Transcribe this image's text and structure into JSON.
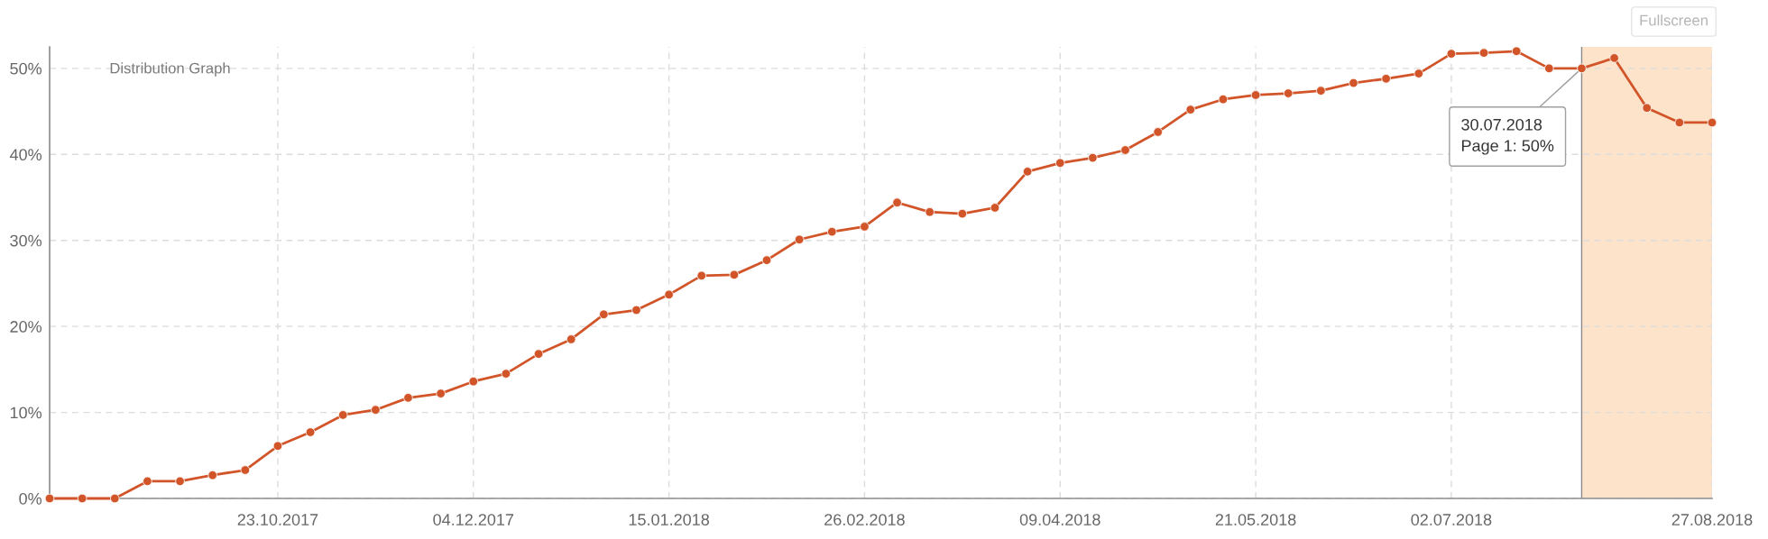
{
  "chart_data": {
    "type": "line",
    "title": "Distribution Graph",
    "x": [
      "2017-09-04",
      "2017-09-11",
      "2017-09-18",
      "2017-09-25",
      "2017-10-02",
      "2017-10-09",
      "2017-10-16",
      "2017-10-23",
      "2017-10-30",
      "2017-11-06",
      "2017-11-13",
      "2017-11-20",
      "2017-11-27",
      "2017-12-04",
      "2017-12-11",
      "2017-12-18",
      "2017-12-25",
      "2018-01-01",
      "2018-01-08",
      "2018-01-15",
      "2018-01-22",
      "2018-01-29",
      "2018-02-05",
      "2018-02-12",
      "2018-02-19",
      "2018-02-26",
      "2018-03-05",
      "2018-03-12",
      "2018-03-19",
      "2018-03-26",
      "2018-04-02",
      "2018-04-09",
      "2018-04-16",
      "2018-04-23",
      "2018-04-30",
      "2018-05-07",
      "2018-05-14",
      "2018-05-21",
      "2018-05-28",
      "2018-06-04",
      "2018-06-11",
      "2018-06-18",
      "2018-06-25",
      "2018-07-02",
      "2018-07-09",
      "2018-07-16",
      "2018-07-23",
      "2018-07-30",
      "2018-08-06",
      "2018-08-13",
      "2018-08-20",
      "2018-08-27"
    ],
    "series": [
      {
        "color": "#d2552a",
        "values": [
          0,
          0,
          0,
          2.0,
          2.0,
          2.7,
          3.3,
          6.1,
          7.7,
          9.7,
          10.3,
          11.7,
          12.2,
          13.6,
          14.5,
          16.8,
          18.5,
          21.4,
          21.9,
          23.7,
          25.9,
          26.0,
          27.7,
          30.1,
          31.0,
          31.6,
          34.4,
          33.3,
          33.1,
          33.8,
          38.0,
          39.0,
          39.6,
          40.5,
          42.6,
          45.2,
          46.4,
          46.9,
          47.1,
          47.4,
          48.3,
          48.8,
          49.4,
          51.7,
          51.8,
          52.0,
          50.0,
          50.0,
          51.2,
          45.4,
          43.7,
          43.7
        ]
      }
    ],
    "xlim": [
      "2017-09-04",
      "2018-08-27"
    ],
    "ylim": [
      0,
      52.5
    ],
    "xticks": [
      {
        "value": "2017-10-23",
        "label": "23.10.2017"
      },
      {
        "value": "2017-12-04",
        "label": "04.12.2017"
      },
      {
        "value": "2018-01-15",
        "label": "15.01.2018"
      },
      {
        "value": "2018-02-26",
        "label": "26.02.2018"
      },
      {
        "value": "2018-04-09",
        "label": "09.04.2018"
      },
      {
        "value": "2018-05-21",
        "label": "21.05.2018"
      },
      {
        "value": "2018-07-02",
        "label": "02.07.2018"
      },
      {
        "value": "2018-08-27",
        "label": "27.08.2018"
      }
    ],
    "yticks": [
      {
        "value": 0,
        "label": "0%"
      },
      {
        "value": 10,
        "label": "10%"
      },
      {
        "value": 20,
        "label": "20%"
      },
      {
        "value": 30,
        "label": "30%"
      },
      {
        "value": 40,
        "label": "40%"
      },
      {
        "value": 50,
        "label": "50%"
      }
    ],
    "grid": true,
    "marker": "circle",
    "line_style": "solid",
    "bands": [
      {
        "axis": "x",
        "from": "2018-07-30",
        "to": "2018-08-27",
        "color": "#fde3ca"
      }
    ],
    "ref_lines": [
      {
        "axis": "x",
        "value": "2018-07-30",
        "color": "#8a8a8a"
      }
    ],
    "annotations": [
      {
        "text": "30.07.2018\nPage 1: 50%",
        "x": "2018-07-30",
        "y": 50
      },
      "Fullscreen"
    ]
  }
}
